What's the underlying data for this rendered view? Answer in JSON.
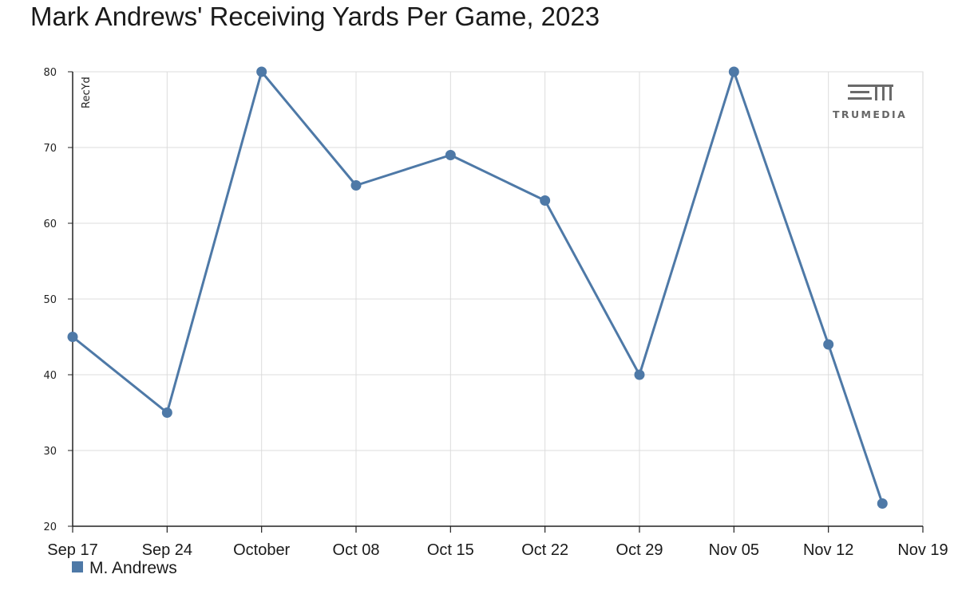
{
  "title": "Mark Andrews' Receiving Yards Per Game, 2023",
  "brand": {
    "logo_text": "TRUMEDIA"
  },
  "chart_data": {
    "type": "line",
    "title": "Mark Andrews' Receiving Yards Per Game, 2023",
    "ylabel": "RecYd",
    "xlabel": "",
    "ylim": [
      20,
      80
    ],
    "yticks": [
      20,
      30,
      40,
      50,
      60,
      70,
      80
    ],
    "x_ticks": [
      "Sep 17",
      "Sep 24",
      "October",
      "Oct 08",
      "Oct 15",
      "Oct 22",
      "Oct 29",
      "Nov 05",
      "Nov 12",
      "Nov 19"
    ],
    "grid": true,
    "legend_position": "bottom-left",
    "series": [
      {
        "name": "M. Andrews",
        "color": "#4e79a7",
        "points": [
          {
            "x": "2023-09-17",
            "y": 45
          },
          {
            "x": "2023-09-24",
            "y": 35
          },
          {
            "x": "2023-10-01",
            "y": 80
          },
          {
            "x": "2023-10-08",
            "y": 65
          },
          {
            "x": "2023-10-15",
            "y": 69
          },
          {
            "x": "2023-10-22",
            "y": 63
          },
          {
            "x": "2023-10-29",
            "y": 40
          },
          {
            "x": "2023-11-05",
            "y": 80
          },
          {
            "x": "2023-11-12",
            "y": 44
          },
          {
            "x": "2023-11-16",
            "y": 23
          }
        ]
      }
    ]
  }
}
